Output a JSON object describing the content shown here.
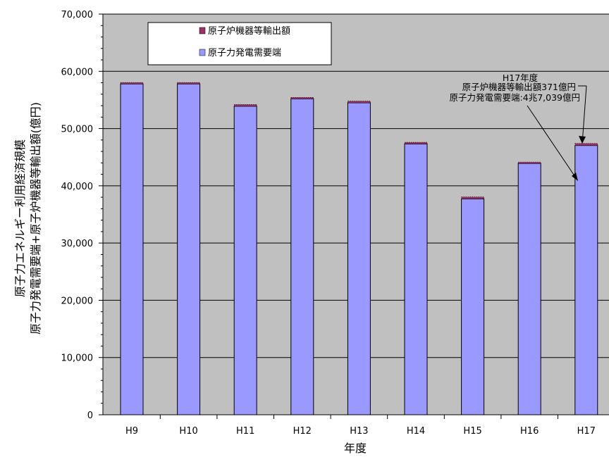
{
  "chart_data": {
    "type": "bar",
    "stacked": true,
    "categories": [
      "H9",
      "H10",
      "H11",
      "H12",
      "H13",
      "H14",
      "H15",
      "H16",
      "H17"
    ],
    "series": [
      {
        "name": "原子力発電需要端",
        "color": "#9999ff",
        "values": [
          57800,
          57800,
          53900,
          55200,
          54500,
          47300,
          37700,
          43900,
          47039
        ]
      },
      {
        "name": "原子炉機器等輸出額",
        "color": "#993366",
        "values": [
          100,
          200,
          300,
          200,
          300,
          300,
          350,
          250,
          371
        ]
      }
    ],
    "ylim": [
      0,
      70000
    ],
    "yticks": [
      0,
      10000,
      20000,
      30000,
      40000,
      50000,
      60000,
      70000
    ],
    "ytick_labels": [
      "0",
      "10,000",
      "20,000",
      "30,000",
      "40,000",
      "50,000",
      "60,000",
      "70,000"
    ],
    "xlabel": "年度",
    "ylabel": [
      "原子力エネルギー利用経済規模",
      "原子力発電需要端+原子炉機器等輸出額(億円)"
    ],
    "grid": "horizontal",
    "plot_background": "#c0c0c0",
    "legend_position": "top-left",
    "annotation": {
      "lines": [
        "H17年度",
        "原子炉機器等輸出額371億円",
        "原子力発電需要端:4兆7,039億円"
      ]
    }
  }
}
